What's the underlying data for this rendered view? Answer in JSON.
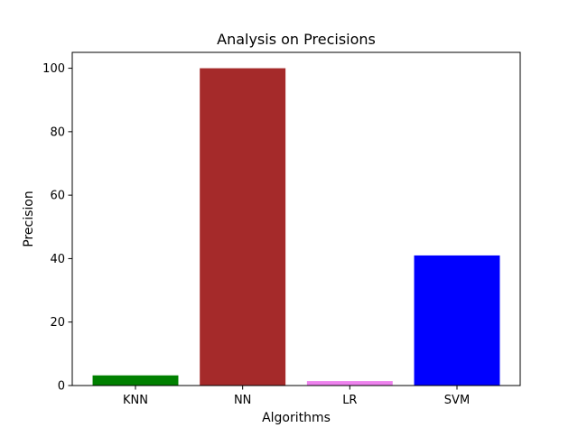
{
  "chart_data": {
    "type": "bar",
    "title": "Analysis on Precisions",
    "xlabel": "Algorithms",
    "ylabel": "Precision",
    "categories": [
      "KNN",
      "NN",
      "LR",
      "SVM"
    ],
    "values": [
      3.2,
      100.0,
      1.4,
      41.0
    ],
    "colors": [
      "#008000",
      "#a52a2a",
      "#ee82ee",
      "#0000ff"
    ],
    "ylim": [
      0,
      105
    ],
    "yticks": [
      0,
      20,
      40,
      60,
      80,
      100
    ],
    "grid": false,
    "legend": false
  }
}
